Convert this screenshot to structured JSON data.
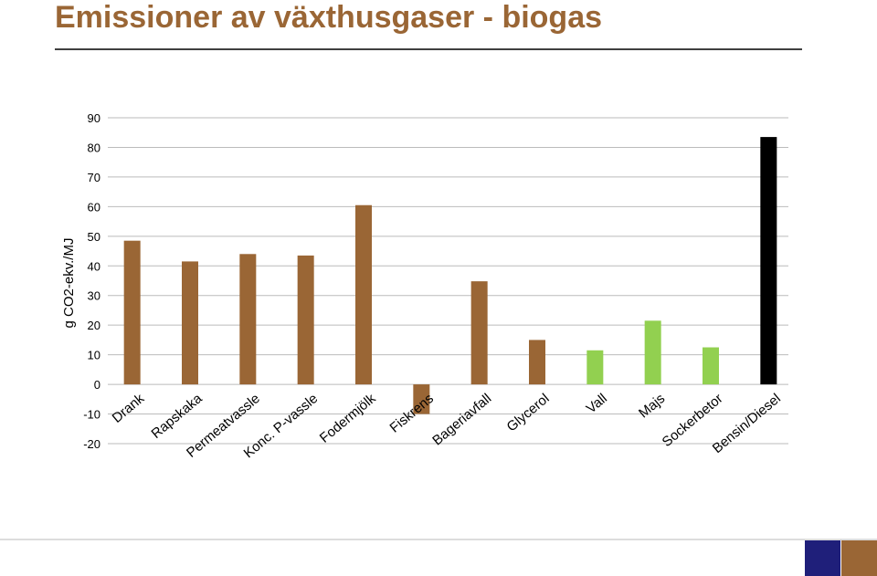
{
  "chart_data": {
    "type": "bar",
    "title": "Emissioner av växthusgaser - biogas",
    "y_label": "g CO2-ekv./MJ",
    "categories": [
      "Drank",
      "Rapskaka",
      "Permeatvassle",
      "Konc. P-vassle",
      "Fodermjölk",
      "Fiskrens",
      "Bageriavfall",
      "Glycerol",
      "Vall",
      "Majs",
      "Sockerbetor",
      "Bensin/Diesel"
    ],
    "values": [
      48.5,
      41.5,
      44,
      43.5,
      60.5,
      -10,
      34.8,
      15,
      11.5,
      21.5,
      12.5,
      83.5
    ],
    "colors": [
      "#9a6635",
      "#9a6635",
      "#9a6635",
      "#9a6635",
      "#9a6635",
      "#9a6635",
      "#9a6635",
      "#9a6635",
      "#92d050",
      "#92d050",
      "#92d050",
      "#000000"
    ],
    "ylim": [
      -20,
      90
    ],
    "yticks": [
      -20,
      -10,
      0,
      10,
      20,
      30,
      40,
      50,
      60,
      70,
      80,
      90
    ],
    "grid": true
  }
}
